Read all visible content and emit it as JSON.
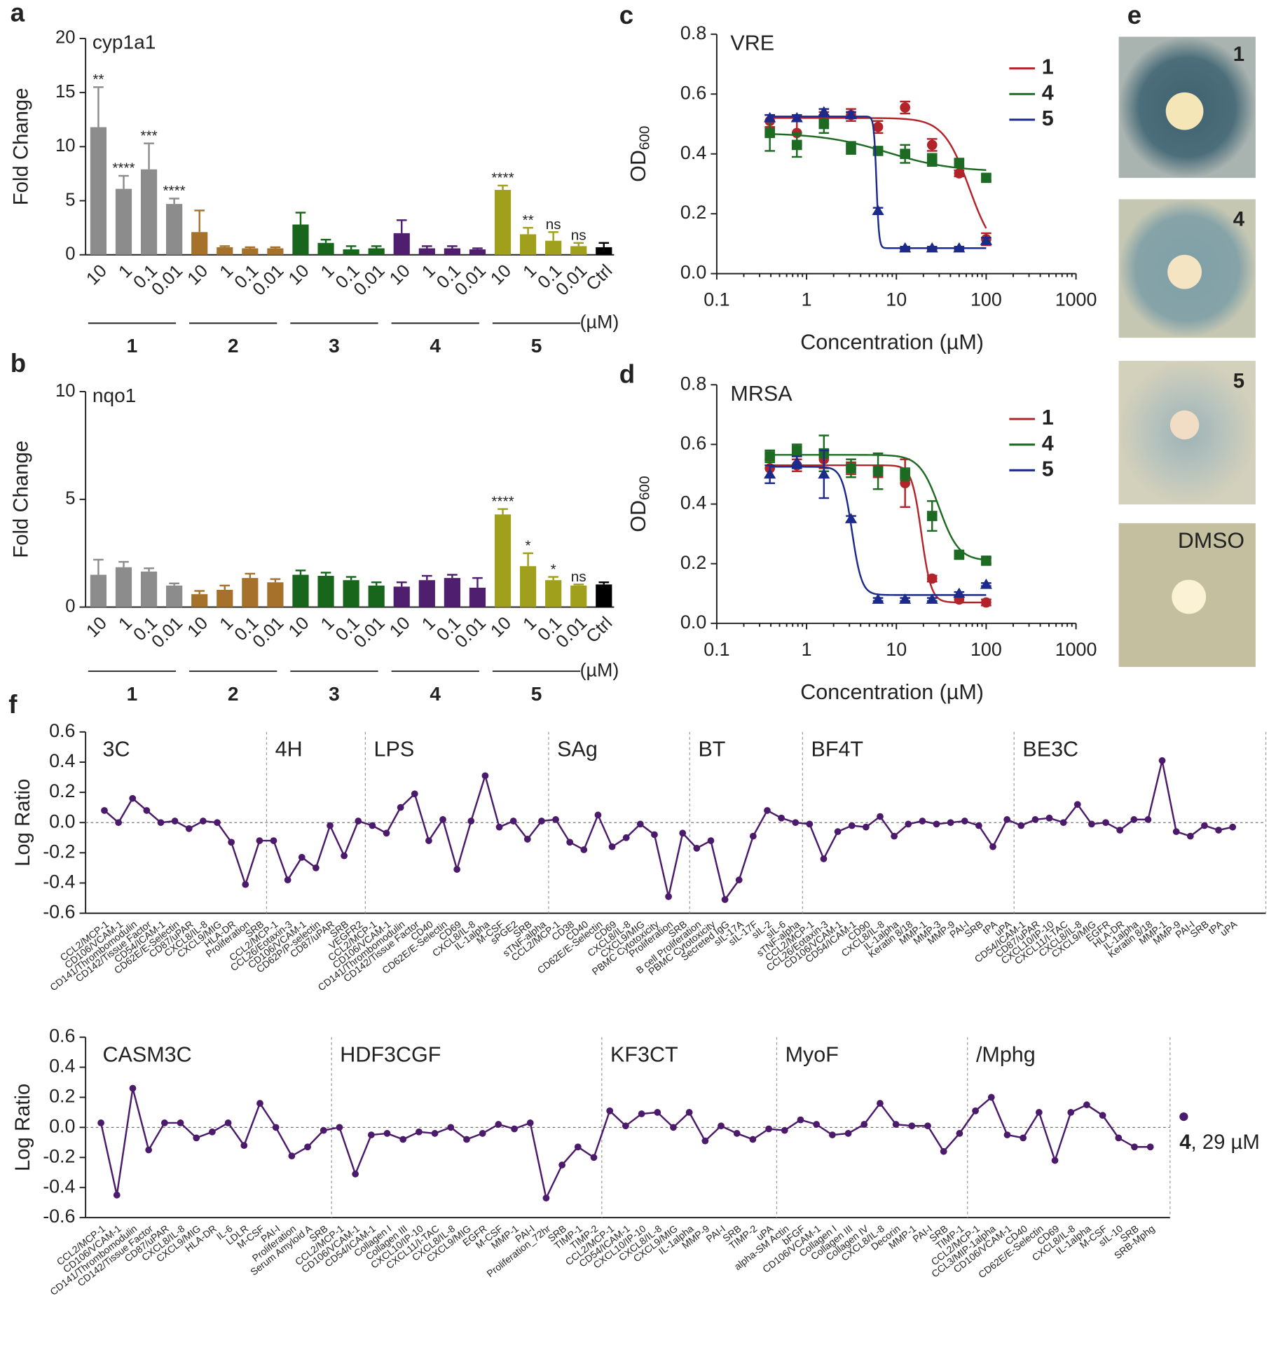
{
  "chart_data": [
    {
      "type": "bar",
      "panel": "a",
      "title": "cyp1a1",
      "ylabel": "Fold Change",
      "unit": "(µM)",
      "categories": [
        "10",
        "1",
        "0.1",
        "0.01"
      ],
      "ylim": [
        0,
        20
      ],
      "yticks": [
        0,
        5,
        10,
        15,
        20
      ],
      "series": [
        {
          "name": "1",
          "color": "#8c8c8c",
          "values": [
            11.8,
            6.1,
            7.9,
            4.7
          ],
          "errors": [
            3.7,
            1.2,
            2.4,
            0.5
          ],
          "annotations": [
            "**",
            "****",
            "***",
            "****"
          ]
        },
        {
          "name": "2",
          "color": "#a6722b",
          "values": [
            2.1,
            0.7,
            0.6,
            0.6
          ],
          "errors": [
            2.0,
            0.1,
            0.1,
            0.1
          ],
          "annotations": [
            null,
            null,
            null,
            null
          ]
        },
        {
          "name": "3",
          "color": "#17661c",
          "values": [
            2.8,
            1.1,
            0.5,
            0.6
          ],
          "errors": [
            1.1,
            0.3,
            0.3,
            0.2
          ],
          "annotations": [
            null,
            null,
            null,
            null
          ]
        },
        {
          "name": "4",
          "color": "#4f1e6e",
          "values": [
            2.0,
            0.6,
            0.6,
            0.5
          ],
          "errors": [
            1.2,
            0.2,
            0.2,
            0.1
          ],
          "annotations": [
            null,
            null,
            null,
            null
          ]
        },
        {
          "name": "5",
          "color": "#a1a01d",
          "values": [
            6.0,
            1.9,
            1.3,
            0.8
          ],
          "errors": [
            0.4,
            0.6,
            0.8,
            0.3
          ],
          "annotations": [
            "****",
            "**",
            "ns",
            "ns"
          ]
        }
      ],
      "control": {
        "label": "Ctrl",
        "color": "#000000",
        "value": 0.7,
        "error": 0.4
      }
    },
    {
      "type": "bar",
      "panel": "b",
      "title": "nqo1",
      "ylabel": "Fold Change",
      "unit": "(µM)",
      "categories": [
        "10",
        "1",
        "0.1",
        "0.01"
      ],
      "ylim": [
        0,
        10
      ],
      "yticks": [
        0,
        5,
        10
      ],
      "series": [
        {
          "name": "1",
          "color": "#8c8c8c",
          "values": [
            1.5,
            1.85,
            1.65,
            1.0
          ],
          "errors": [
            0.7,
            0.25,
            0.15,
            0.1
          ],
          "annotations": [
            null,
            null,
            null,
            null
          ]
        },
        {
          "name": "2",
          "color": "#a6722b",
          "values": [
            0.6,
            0.8,
            1.35,
            1.15
          ],
          "errors": [
            0.15,
            0.2,
            0.2,
            0.15
          ],
          "annotations": [
            null,
            null,
            null,
            null
          ]
        },
        {
          "name": "3",
          "color": "#17661c",
          "values": [
            1.5,
            1.45,
            1.25,
            1.0
          ],
          "errors": [
            0.2,
            0.15,
            0.15,
            0.15
          ],
          "annotations": [
            null,
            null,
            null,
            null
          ]
        },
        {
          "name": "4",
          "color": "#4f1e6e",
          "values": [
            0.95,
            1.25,
            1.35,
            0.9
          ],
          "errors": [
            0.2,
            0.2,
            0.15,
            0.45
          ],
          "annotations": [
            null,
            null,
            null,
            null
          ]
        },
        {
          "name": "5",
          "color": "#a1a01d",
          "values": [
            4.3,
            1.9,
            1.25,
            1.0
          ],
          "errors": [
            0.25,
            0.6,
            0.15,
            0.05
          ],
          "annotations": [
            "****",
            "*",
            "*",
            "ns"
          ]
        }
      ],
      "control": {
        "label": "Ctrl",
        "color": "#000000",
        "value": 1.05,
        "error": 0.1
      }
    },
    {
      "type": "scatter",
      "panel": "c",
      "annotation": "VRE",
      "xlabel": "Concentration (µM)",
      "ylabel": "OD",
      "ylabel_sub": "600",
      "log_x": true,
      "xlim": [
        0.1,
        1000
      ],
      "xticks": [
        0.1,
        1,
        10,
        100,
        1000
      ],
      "ylim": [
        0,
        0.8
      ],
      "yticks": [
        {
          "value": 0,
          "label": "0.0"
        },
        0.2,
        0.4,
        0.6,
        0.8
      ],
      "x": [
        0.39,
        0.78,
        1.56,
        3.125,
        6.25,
        12.5,
        25,
        50,
        100
      ],
      "series": [
        {
          "name": "1",
          "color": "#b3242a",
          "marker": "circle",
          "values": [
            0.51,
            0.47,
            0.52,
            0.53,
            0.49,
            0.555,
            0.43,
            0.335,
            0.115
          ],
          "errors": [
            0.02,
            0.04,
            0.02,
            0.02,
            0.02,
            0.02,
            0.02,
            0.01,
            0.02
          ],
          "fit": {
            "top": 0.52,
            "bottom": 0.05,
            "ic50": 65,
            "hill": 3
          }
        },
        {
          "name": "4",
          "color": "#1d6b22",
          "marker": "square",
          "values": [
            0.47,
            0.43,
            0.5,
            0.42,
            0.41,
            0.4,
            0.38,
            0.37,
            0.32
          ],
          "errors": [
            0.06,
            0.04,
            0.03,
            0.02,
            0.01,
            0.03,
            0.02,
            0.01,
            0.01
          ],
          "fit": {
            "top": 0.47,
            "bottom": 0.34,
            "ic50": 8,
            "hill": 1.2
          }
        },
        {
          "name": "5",
          "color": "#1c2a8c",
          "marker": "triangle",
          "values": [
            0.52,
            0.52,
            0.54,
            0.53,
            0.21,
            0.085,
            0.085,
            0.085,
            0.11
          ],
          "errors": [
            0.01,
            0.01,
            0.01,
            0.01,
            0.01,
            0.005,
            0.005,
            0.005,
            0.01
          ],
          "fit": {
            "top": 0.525,
            "bottom": 0.085,
            "ic50": 6,
            "hill": 30
          }
        }
      ]
    },
    {
      "type": "scatter",
      "panel": "d",
      "annotation": "MRSA",
      "xlabel": "Concentration (µM)",
      "ylabel": "OD",
      "ylabel_sub": "600",
      "log_x": true,
      "xlim": [
        0.1,
        1000
      ],
      "xticks": [
        0.1,
        1,
        10,
        100,
        1000
      ],
      "ylim": [
        0,
        0.8
      ],
      "yticks": [
        {
          "value": 0,
          "label": "0.0"
        },
        0.2,
        0.4,
        0.6,
        0.8
      ],
      "x": [
        0.39,
        0.78,
        1.56,
        3.125,
        6.25,
        12.5,
        25,
        50,
        100
      ],
      "series": [
        {
          "name": "1",
          "color": "#b3242a",
          "marker": "circle",
          "values": [
            0.52,
            0.53,
            0.55,
            0.52,
            0.51,
            0.47,
            0.15,
            0.08,
            0.07
          ],
          "errors": [
            0.03,
            0.02,
            0.03,
            0.02,
            0.02,
            0.08,
            0.01,
            0.01,
            0.01
          ],
          "fit": {
            "top": 0.53,
            "bottom": 0.07,
            "ic50": 19,
            "hill": 8
          }
        },
        {
          "name": "4",
          "color": "#1d6b22",
          "marker": "square",
          "values": [
            0.56,
            0.58,
            0.57,
            0.52,
            0.51,
            0.5,
            0.36,
            0.23,
            0.21
          ],
          "errors": [
            0.02,
            0.02,
            0.06,
            0.03,
            0.06,
            0.02,
            0.05,
            0.01,
            0.01
          ],
          "fit": {
            "top": 0.565,
            "bottom": 0.21,
            "ic50": 30,
            "hill": 4
          }
        },
        {
          "name": "5",
          "color": "#1c2a8c",
          "marker": "triangle",
          "values": [
            0.5,
            0.54,
            0.5,
            0.35,
            0.08,
            0.08,
            0.08,
            0.1,
            0.13
          ],
          "errors": [
            0.03,
            0.02,
            0.08,
            0.01,
            0.005,
            0.005,
            0.005,
            0.005,
            0.005
          ],
          "fit": {
            "top": 0.525,
            "bottom": 0.095,
            "ic50": 3.2,
            "hill": 8
          }
        }
      ]
    },
    {
      "type": "line",
      "panel": "f",
      "ylabel": "Log Ratio",
      "color": "#4b1a6b",
      "ylim": [
        -0.6,
        0.6
      ],
      "yticks": [
        0.6,
        0.4,
        0.2,
        {
          "value": 0,
          "label": "0.0"
        },
        -0.2,
        -0.4,
        -0.6
      ],
      "groups": [
        {
          "label": "3C",
          "categories": [
            "CCL2/MCP-1",
            "CD106/VCAM-1",
            "CD141/Thrombomodulin",
            "CD142/Tissue Factor",
            "CD54/ICAM-1",
            "CD62E/E-Selectin",
            "CD87/uPAR",
            "CXCL8/IL-8",
            "CXCL9/MIG",
            "HLA-DR",
            "Proliferation",
            "SRB"
          ],
          "values": [
            0.08,
            0.0,
            0.16,
            0.08,
            0.0,
            0.01,
            -0.04,
            0.01,
            0.0,
            -0.13,
            -0.41,
            -0.12
          ]
        },
        {
          "label": "4H",
          "categories": [
            "CCL2/MCP-1",
            "CCL26/Eotaxin-3",
            "CD106/VCAM-1",
            "CD62P/P-selectin",
            "CD87/uPAR",
            "SRB",
            "VEGFR2"
          ],
          "values": [
            -0.12,
            -0.38,
            -0.23,
            -0.3,
            -0.02,
            -0.22,
            0.01
          ]
        },
        {
          "label": "LPS",
          "categories": [
            "CCL2/MCP-1",
            "CD106/VCAM-1",
            "CD141/Thrombomodulin",
            "CD142/Tissue Factor",
            "CD40",
            "CD62E/E-Selectin",
            "CD69",
            "CXCL8/IL-8",
            "IL-1alpha",
            "M-CSF",
            "sPGE2",
            "SRB",
            "sTNF-alpha"
          ],
          "values": [
            -0.02,
            -0.07,
            0.1,
            0.19,
            -0.12,
            0.02,
            -0.31,
            0.01,
            0.31,
            -0.03,
            0.01,
            -0.11,
            0.01
          ]
        },
        {
          "label": "SAg",
          "categories": [
            "CCL2/MCP-1",
            "CD38",
            "CD40",
            "CD62E/E-Selectin",
            "CD69",
            "CXCL8/IL-8",
            "CXCL9/MIG",
            "PBMC Cytotoxicity",
            "Proliferation",
            "SRB"
          ],
          "values": [
            0.02,
            -0.13,
            -0.18,
            0.05,
            -0.16,
            -0.1,
            -0.01,
            -0.08,
            -0.49,
            -0.07
          ]
        },
        {
          "label": "BT",
          "categories": [
            "B cell Proliferation",
            "PBMC Cytotoxicity",
            "Secreted IgG",
            "sIL-17A",
            "sIL-17F",
            "sIL-2",
            "sIL-6",
            "sTNF-alpha"
          ],
          "values": [
            -0.17,
            -0.12,
            -0.51,
            -0.38,
            -0.09,
            0.08,
            0.03,
            0.0
          ]
        },
        {
          "label": "BF4T",
          "categories": [
            "CCL2/MCP-1",
            "CCL26/Eotaxin-3",
            "CD106/VCAM-1",
            "CD54/ICAM-1",
            "CD90",
            "CXCL8/IL-8",
            "IL-1alpha",
            "Keratin 8/18",
            "MMP-1",
            "MMP-3",
            "MMP-9",
            "PAI-I",
            "SRB",
            "tPA",
            "uPA"
          ],
          "values": [
            -0.01,
            -0.24,
            -0.06,
            -0.02,
            -0.03,
            0.04,
            -0.09,
            -0.01,
            0.01,
            -0.01,
            0.0,
            0.01,
            -0.02,
            -0.16,
            0.02
          ]
        },
        {
          "label": "BE3C",
          "categories": [
            "CD54/ICAM-1",
            "CD87/uPAR",
            "CXCL10/IP-10",
            "CXCL11/I-TAC",
            "CXCL8/IL-8",
            "CXCL9/MIG",
            "EGFR",
            "HLA-DR",
            "IL-1alpha",
            "Keratin 8/18",
            "MMP-1",
            "MMP-9",
            "PAI-I",
            "SRB",
            "tPA",
            "uPA"
          ],
          "values": [
            -0.02,
            0.02,
            0.03,
            0.0,
            0.12,
            -0.01,
            0.0,
            -0.05,
            0.02,
            0.02,
            0.41,
            -0.06,
            -0.09,
            -0.02,
            -0.05,
            -0.03
          ]
        }
      ]
    },
    {
      "type": "line",
      "ylabel": "Log Ratio",
      "color": "#4b1a6b",
      "ylim": [
        -0.6,
        0.6
      ],
      "yticks": [
        0.6,
        0.4,
        0.2,
        {
          "value": 0,
          "label": "0.0"
        },
        -0.2,
        -0.4,
        -0.6
      ],
      "legend": {
        "name": "4",
        "text": ", 29 µM"
      },
      "groups": [
        {
          "label": "CASM3C",
          "categories": [
            "CCL2/MCP-1",
            "CD106/VCAM-1",
            "CD141/Thrombomodulin",
            "CD142/Tissue Factor",
            "CD87/uPAR",
            "CXCL8/IL-8",
            "CXCL9/MIG",
            "HLA-DR",
            "IL-6",
            "LDLR",
            "M-CSF",
            "PAI-I",
            "Proliferation",
            "Serum Amyloid A",
            "SRB"
          ],
          "values": [
            0.03,
            -0.45,
            0.26,
            -0.15,
            0.03,
            0.03,
            -0.07,
            -0.03,
            0.03,
            -0.12,
            0.16,
            0.0,
            -0.19,
            -0.13,
            -0.02
          ]
        },
        {
          "label": "HDF3CGF",
          "categories": [
            "CCL2/MCP-1",
            "CD106/VCAM-1",
            "CD54/ICAM-1",
            "Collagen I",
            "Collagen III",
            "CXCL10/IP-10",
            "CXCL11/I-TAC",
            "CXCL8/IL-8",
            "CXCL9/MIG",
            "EGFR",
            "M-CSF",
            "MMP-1",
            "PAI-I",
            "Proliferation_72hr",
            "SRB",
            "TIMP-1",
            "TIMP-2"
          ],
          "values": [
            0.0,
            -0.31,
            -0.05,
            -0.04,
            -0.08,
            -0.03,
            -0.04,
            0.0,
            -0.08,
            -0.04,
            0.02,
            -0.01,
            0.03,
            -0.47,
            -0.25,
            -0.13,
            -0.2
          ]
        },
        {
          "label": "KF3CT",
          "categories": [
            "CCL2/MCP-1",
            "CD54/ICAM-1",
            "CXCL10/IP-10",
            "CXCL8/IL-8",
            "CXCL9/MIG",
            "IL-1alpha",
            "MMP-9",
            "PAI-I",
            "SRB",
            "TIMP-2",
            "uPA"
          ],
          "values": [
            0.11,
            0.01,
            0.09,
            0.1,
            0.0,
            0.1,
            -0.09,
            0.01,
            -0.04,
            -0.08,
            -0.01
          ]
        },
        {
          "label": "MyoF",
          "categories": [
            "alpha-SM Actin",
            "bFGF",
            "CD106/VCAM-1",
            "Collagen I",
            "Collagen III",
            "Collagen IV",
            "CXCL8/IL-8",
            "Decorin",
            "MMP-1",
            "PAI-I",
            "SRB",
            "TIMP-1"
          ],
          "values": [
            -0.02,
            0.05,
            0.02,
            -0.05,
            -0.04,
            0.02,
            0.16,
            0.02,
            0.01,
            0.01,
            -0.16,
            -0.04
          ]
        },
        {
          "label": "/Mphg",
          "categories": [
            "CCL2/MCP-1",
            "CCL3/MIP-1alpha",
            "CD106/VCAM-1",
            "CD40",
            "CD62E/E-Selectin",
            "CD69",
            "CXCL8/IL-8",
            "IL-1alpha",
            "M-CSF",
            "sIL-10",
            "SRB",
            "SRB-Mphg"
          ],
          "values": [
            0.11,
            0.2,
            -0.05,
            -0.07,
            0.1,
            -0.22,
            0.1,
            0.15,
            0.08,
            -0.07,
            -0.13,
            -0.13
          ]
        }
      ]
    }
  ],
  "image_panel": {
    "panel": "e",
    "labels": [
      "1",
      "4",
      "5",
      "DMSO"
    ]
  }
}
